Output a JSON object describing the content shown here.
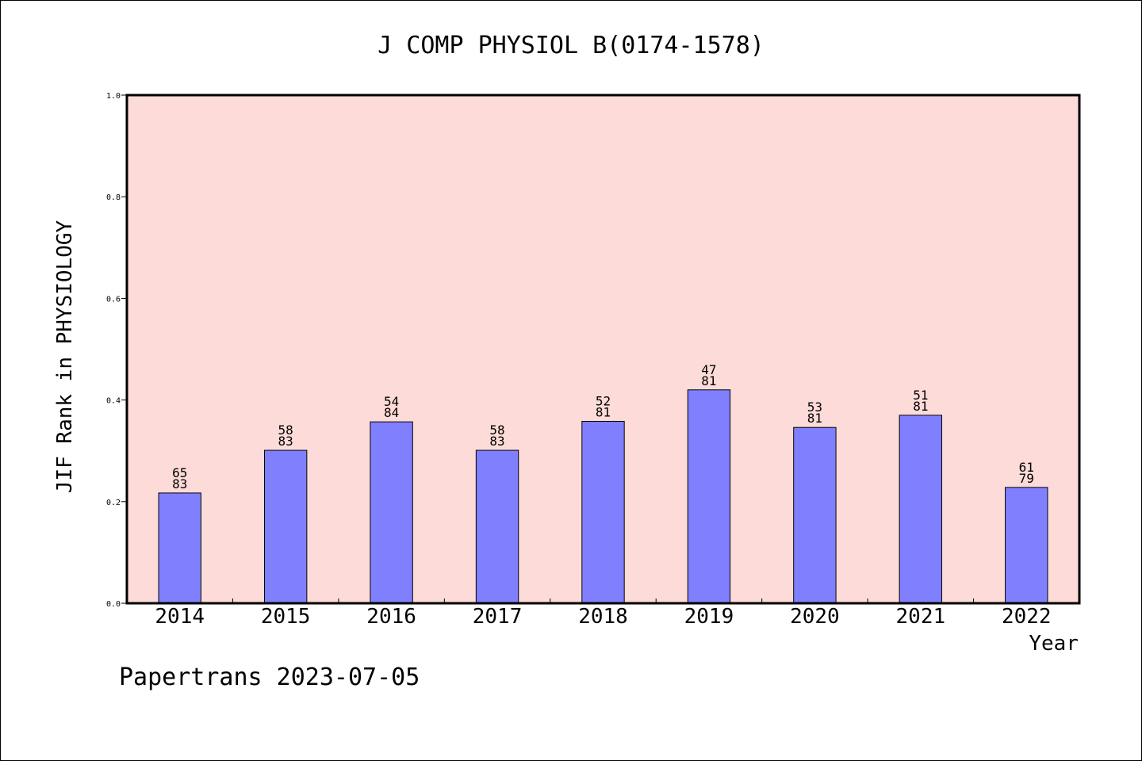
{
  "chart_data": {
    "type": "bar",
    "title": "J COMP PHYSIOL B(0174-1578)",
    "xlabel": "Year",
    "ylabel": "JIF Rank in PHYSIOLOGY",
    "ylim": [
      0,
      1.0
    ],
    "yticks": [
      "0.0",
      "0.2",
      "0.4",
      "0.6",
      "0.8",
      "1.0"
    ],
    "grid": false,
    "categories": [
      "2014",
      "2015",
      "2016",
      "2017",
      "2018",
      "2019",
      "2020",
      "2021",
      "2022"
    ],
    "ranks": [
      "65",
      "58",
      "54",
      "58",
      "52",
      "47",
      "53",
      "51",
      "61"
    ],
    "totals": [
      "83",
      "83",
      "84",
      "83",
      "81",
      "81",
      "81",
      "81",
      "79"
    ],
    "values": [
      0.217,
      0.301,
      0.357,
      0.301,
      0.358,
      0.42,
      0.346,
      0.37,
      0.228
    ]
  },
  "footer": "Papertrans 2023-07-05",
  "colors": {
    "plot_bg": "#fddbd8",
    "bar": "#8080ff",
    "axis": "#000000"
  }
}
